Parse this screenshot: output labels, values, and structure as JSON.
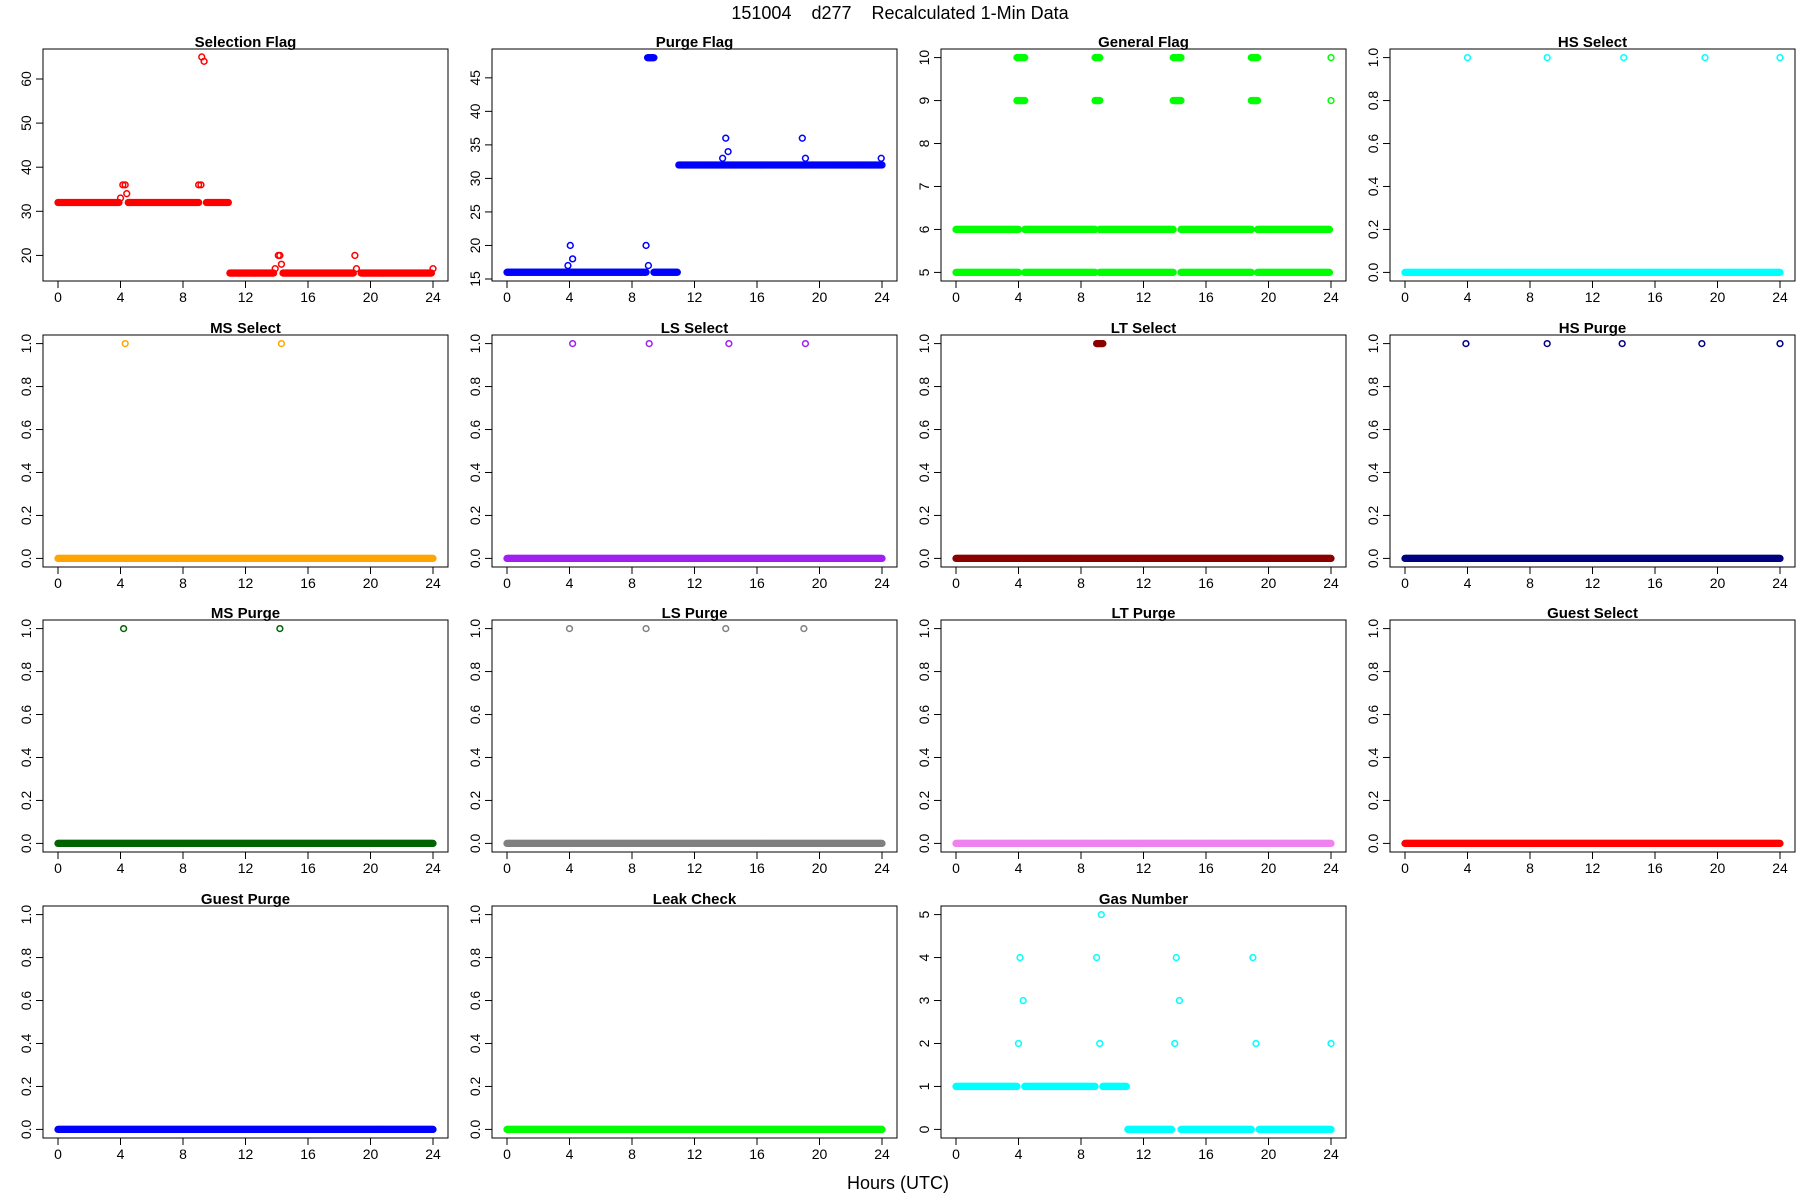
{
  "figure": {
    "title": "151004    d277    Recalculated 1-Min Data",
    "xlabel": "Hours (UTC)"
  },
  "chart_data": [
    {
      "type": "scatter",
      "title": "Selection Flag",
      "color": "#ff0000",
      "xlim": [
        -0.96,
        24.96
      ],
      "ylim": [
        14.2,
        66.8
      ],
      "xticks": [
        0,
        4,
        8,
        12,
        16,
        20,
        24
      ],
      "yticks": [
        20,
        30,
        40,
        50,
        60
      ],
      "segments": [
        {
          "x0": 0,
          "x1": 3.9,
          "y": 32
        },
        {
          "x0": 4.5,
          "x1": 9.0,
          "y": 32
        },
        {
          "x0": 9.5,
          "x1": 10.9,
          "y": 32
        },
        {
          "x0": 11.0,
          "x1": 13.8,
          "y": 16
        },
        {
          "x0": 14.4,
          "x1": 18.9,
          "y": 16
        },
        {
          "x0": 19.4,
          "x1": 23.9,
          "y": 16
        }
      ],
      "points": [
        {
          "x": 4.0,
          "y": 33
        },
        {
          "x": 4.15,
          "y": 36
        },
        {
          "x": 4.3,
          "y": 36
        },
        {
          "x": 4.4,
          "y": 34
        },
        {
          "x": 9.0,
          "y": 36
        },
        {
          "x": 9.15,
          "y": 36
        },
        {
          "x": 9.2,
          "y": 65
        },
        {
          "x": 9.35,
          "y": 64
        },
        {
          "x": 13.9,
          "y": 17
        },
        {
          "x": 14.1,
          "y": 20
        },
        {
          "x": 14.2,
          "y": 20
        },
        {
          "x": 14.3,
          "y": 18
        },
        {
          "x": 19.0,
          "y": 20
        },
        {
          "x": 19.1,
          "y": 17
        },
        {
          "x": 24.0,
          "y": 17
        }
      ]
    },
    {
      "type": "scatter",
      "title": "Purge Flag",
      "color": "#0000ff",
      "xlim": [
        -0.96,
        24.96
      ],
      "ylim": [
        14.7,
        49.3
      ],
      "xticks": [
        0,
        4,
        8,
        12,
        16,
        20,
        24
      ],
      "yticks": [
        15,
        20,
        25,
        30,
        35,
        40,
        45
      ],
      "segments": [
        {
          "x0": 0,
          "x1": 8.9,
          "y": 16
        },
        {
          "x0": 9.4,
          "x1": 10.9,
          "y": 16
        },
        {
          "x0": 9.0,
          "x1": 9.4,
          "y": 48
        },
        {
          "x0": 11.0,
          "x1": 23.9,
          "y": 32
        }
      ],
      "points": [
        {
          "x": 3.9,
          "y": 17
        },
        {
          "x": 4.05,
          "y": 20
        },
        {
          "x": 4.2,
          "y": 18
        },
        {
          "x": 8.9,
          "y": 20
        },
        {
          "x": 9.05,
          "y": 17
        },
        {
          "x": 13.8,
          "y": 33
        },
        {
          "x": 14.0,
          "y": 36
        },
        {
          "x": 14.15,
          "y": 34
        },
        {
          "x": 18.9,
          "y": 36
        },
        {
          "x": 19.1,
          "y": 33
        },
        {
          "x": 23.95,
          "y": 33
        },
        {
          "x": 24.0,
          "y": 32
        }
      ]
    },
    {
      "type": "scatter",
      "title": "General Flag",
      "color": "#00ff00",
      "xlim": [
        -0.96,
        24.96
      ],
      "ylim": [
        4.8,
        10.2
      ],
      "xticks": [
        0,
        4,
        8,
        12,
        16,
        20,
        24
      ],
      "yticks": [
        5,
        6,
        7,
        8,
        9,
        10
      ],
      "segments": [
        {
          "x0": 0,
          "x1": 4.0,
          "y": 5
        },
        {
          "x0": 4.4,
          "x1": 8.9,
          "y": 5
        },
        {
          "x0": 9.2,
          "x1": 13.9,
          "y": 5
        },
        {
          "x0": 14.4,
          "x1": 18.9,
          "y": 5
        },
        {
          "x0": 19.3,
          "x1": 23.9,
          "y": 5
        },
        {
          "x0": 0,
          "x1": 4.0,
          "y": 6
        },
        {
          "x0": 4.4,
          "x1": 8.9,
          "y": 6
        },
        {
          "x0": 9.2,
          "x1": 13.9,
          "y": 6
        },
        {
          "x0": 14.4,
          "x1": 18.9,
          "y": 6
        },
        {
          "x0": 19.3,
          "x1": 23.9,
          "y": 6
        },
        {
          "x0": 3.9,
          "x1": 4.4,
          "y": 9
        },
        {
          "x0": 8.9,
          "x1": 9.2,
          "y": 9
        },
        {
          "x0": 13.9,
          "x1": 14.4,
          "y": 9
        },
        {
          "x0": 18.9,
          "x1": 19.3,
          "y": 9
        },
        {
          "x0": 3.9,
          "x1": 4.4,
          "y": 10
        },
        {
          "x0": 8.9,
          "x1": 9.2,
          "y": 10
        },
        {
          "x0": 13.9,
          "x1": 14.4,
          "y": 10
        },
        {
          "x0": 18.9,
          "x1": 19.3,
          "y": 10
        }
      ],
      "points": [
        {
          "x": 24.0,
          "y": 9
        },
        {
          "x": 24.0,
          "y": 10
        }
      ]
    },
    {
      "type": "scatter",
      "title": "HS Select",
      "color": "#00ffff",
      "xlim": [
        -0.96,
        24.96
      ],
      "ylim": [
        -0.04,
        1.04
      ],
      "xticks": [
        0,
        4,
        8,
        12,
        16,
        20,
        24
      ],
      "yticks": [
        0.0,
        0.2,
        0.4,
        0.6,
        0.8,
        1.0
      ],
      "segments": [
        {
          "x0": 0,
          "x1": 24,
          "y": 0
        }
      ],
      "points": [
        {
          "x": 4.0,
          "y": 1
        },
        {
          "x": 9.1,
          "y": 1
        },
        {
          "x": 14.0,
          "y": 1
        },
        {
          "x": 19.2,
          "y": 1
        },
        {
          "x": 24.0,
          "y": 1
        }
      ]
    },
    {
      "type": "scatter",
      "title": "MS Select",
      "color": "#ffa500",
      "xlim": [
        -0.96,
        24.96
      ],
      "ylim": [
        -0.04,
        1.04
      ],
      "xticks": [
        0,
        4,
        8,
        12,
        16,
        20,
        24
      ],
      "yticks": [
        0.0,
        0.2,
        0.4,
        0.6,
        0.8,
        1.0
      ],
      "segments": [
        {
          "x0": 0,
          "x1": 24,
          "y": 0
        }
      ],
      "points": [
        {
          "x": 4.3,
          "y": 1
        },
        {
          "x": 14.3,
          "y": 1
        }
      ]
    },
    {
      "type": "scatter",
      "title": "LS Select",
      "color": "#a020f0",
      "xlim": [
        -0.96,
        24.96
      ],
      "ylim": [
        -0.04,
        1.04
      ],
      "xticks": [
        0,
        4,
        8,
        12,
        16,
        20,
        24
      ],
      "yticks": [
        0.0,
        0.2,
        0.4,
        0.6,
        0.8,
        1.0
      ],
      "segments": [
        {
          "x0": 0,
          "x1": 24,
          "y": 0
        }
      ],
      "points": [
        {
          "x": 4.2,
          "y": 1
        },
        {
          "x": 9.1,
          "y": 1
        },
        {
          "x": 14.2,
          "y": 1
        },
        {
          "x": 19.1,
          "y": 1
        }
      ]
    },
    {
      "type": "scatter",
      "title": "LT Select",
      "color": "#8b0000",
      "xlim": [
        -0.96,
        24.96
      ],
      "ylim": [
        -0.04,
        1.04
      ],
      "xticks": [
        0,
        4,
        8,
        12,
        16,
        20,
        24
      ],
      "yticks": [
        0.0,
        0.2,
        0.4,
        0.6,
        0.8,
        1.0
      ],
      "segments": [
        {
          "x0": 0,
          "x1": 24,
          "y": 0
        },
        {
          "x0": 9.0,
          "x1": 9.4,
          "y": 1
        }
      ],
      "points": []
    },
    {
      "type": "scatter",
      "title": "HS Purge",
      "color": "#000080",
      "xlim": [
        -0.96,
        24.96
      ],
      "ylim": [
        -0.04,
        1.04
      ],
      "xticks": [
        0,
        4,
        8,
        12,
        16,
        20,
        24
      ],
      "yticks": [
        0.0,
        0.2,
        0.4,
        0.6,
        0.8,
        1.0
      ],
      "segments": [
        {
          "x0": 0,
          "x1": 24,
          "y": 0
        }
      ],
      "points": [
        {
          "x": 3.9,
          "y": 1
        },
        {
          "x": 9.1,
          "y": 1
        },
        {
          "x": 13.9,
          "y": 1
        },
        {
          "x": 19.0,
          "y": 1
        },
        {
          "x": 24.0,
          "y": 1
        }
      ]
    },
    {
      "type": "scatter",
      "title": "MS Purge",
      "color": "#006400",
      "xlim": [
        -0.96,
        24.96
      ],
      "ylim": [
        -0.04,
        1.04
      ],
      "xticks": [
        0,
        4,
        8,
        12,
        16,
        20,
        24
      ],
      "yticks": [
        0.0,
        0.2,
        0.4,
        0.6,
        0.8,
        1.0
      ],
      "segments": [
        {
          "x0": 0,
          "x1": 24,
          "y": 0
        }
      ],
      "points": [
        {
          "x": 4.2,
          "y": 1
        },
        {
          "x": 14.2,
          "y": 1
        }
      ]
    },
    {
      "type": "scatter",
      "title": "LS Purge",
      "color": "#808080",
      "xlim": [
        -0.96,
        24.96
      ],
      "ylim": [
        -0.04,
        1.04
      ],
      "xticks": [
        0,
        4,
        8,
        12,
        16,
        20,
        24
      ],
      "yticks": [
        0.0,
        0.2,
        0.4,
        0.6,
        0.8,
        1.0
      ],
      "segments": [
        {
          "x0": 0,
          "x1": 24,
          "y": 0
        }
      ],
      "points": [
        {
          "x": 4.0,
          "y": 1
        },
        {
          "x": 8.9,
          "y": 1
        },
        {
          "x": 14.0,
          "y": 1
        },
        {
          "x": 19.0,
          "y": 1
        }
      ]
    },
    {
      "type": "scatter",
      "title": "LT Purge",
      "color": "#ee82ee",
      "xlim": [
        -0.96,
        24.96
      ],
      "ylim": [
        -0.04,
        1.04
      ],
      "xticks": [
        0,
        4,
        8,
        12,
        16,
        20,
        24
      ],
      "yticks": [
        0.0,
        0.2,
        0.4,
        0.6,
        0.8,
        1.0
      ],
      "segments": [
        {
          "x0": 0,
          "x1": 24,
          "y": 0
        }
      ],
      "points": []
    },
    {
      "type": "scatter",
      "title": "Guest Select",
      "color": "#ff0000",
      "xlim": [
        -0.96,
        24.96
      ],
      "ylim": [
        -0.04,
        1.04
      ],
      "xticks": [
        0,
        4,
        8,
        12,
        16,
        20,
        24
      ],
      "yticks": [
        0.0,
        0.2,
        0.4,
        0.6,
        0.8,
        1.0
      ],
      "segments": [
        {
          "x0": 0,
          "x1": 24,
          "y": 0
        }
      ],
      "points": []
    },
    {
      "type": "scatter",
      "title": "Guest Purge",
      "color": "#0000ff",
      "xlim": [
        -0.96,
        24.96
      ],
      "ylim": [
        -0.04,
        1.04
      ],
      "xticks": [
        0,
        4,
        8,
        12,
        16,
        20,
        24
      ],
      "yticks": [
        0.0,
        0.2,
        0.4,
        0.6,
        0.8,
        1.0
      ],
      "segments": [
        {
          "x0": 0,
          "x1": 24,
          "y": 0
        }
      ],
      "points": []
    },
    {
      "type": "scatter",
      "title": "Leak Check",
      "color": "#00ff00",
      "xlim": [
        -0.96,
        24.96
      ],
      "ylim": [
        -0.04,
        1.04
      ],
      "xticks": [
        0,
        4,
        8,
        12,
        16,
        20,
        24
      ],
      "yticks": [
        0.0,
        0.2,
        0.4,
        0.6,
        0.8,
        1.0
      ],
      "segments": [
        {
          "x0": 0,
          "x1": 24,
          "y": 0
        }
      ],
      "points": []
    },
    {
      "type": "scatter",
      "title": "Gas Number",
      "color": "#00ffff",
      "xlim": [
        -0.96,
        24.96
      ],
      "ylim": [
        -0.2,
        5.2
      ],
      "xticks": [
        0,
        4,
        8,
        12,
        16,
        20,
        24
      ],
      "yticks": [
        0,
        1,
        2,
        3,
        4,
        5
      ],
      "segments": [
        {
          "x0": 0,
          "x1": 3.9,
          "y": 1
        },
        {
          "x0": 4.4,
          "x1": 8.9,
          "y": 1
        },
        {
          "x0": 9.4,
          "x1": 10.9,
          "y": 1
        },
        {
          "x0": 11.0,
          "x1": 13.8,
          "y": 0
        },
        {
          "x0": 14.4,
          "x1": 18.9,
          "y": 0
        },
        {
          "x0": 19.4,
          "x1": 24.0,
          "y": 0
        }
      ],
      "points": [
        {
          "x": 4.0,
          "y": 2
        },
        {
          "x": 4.1,
          "y": 4
        },
        {
          "x": 4.3,
          "y": 3
        },
        {
          "x": 9.0,
          "y": 4
        },
        {
          "x": 9.2,
          "y": 2
        },
        {
          "x": 9.3,
          "y": 5
        },
        {
          "x": 14.0,
          "y": 2
        },
        {
          "x": 14.1,
          "y": 4
        },
        {
          "x": 14.3,
          "y": 3
        },
        {
          "x": 19.0,
          "y": 4
        },
        {
          "x": 19.2,
          "y": 2
        },
        {
          "x": 24.0,
          "y": 2
        }
      ]
    }
  ]
}
